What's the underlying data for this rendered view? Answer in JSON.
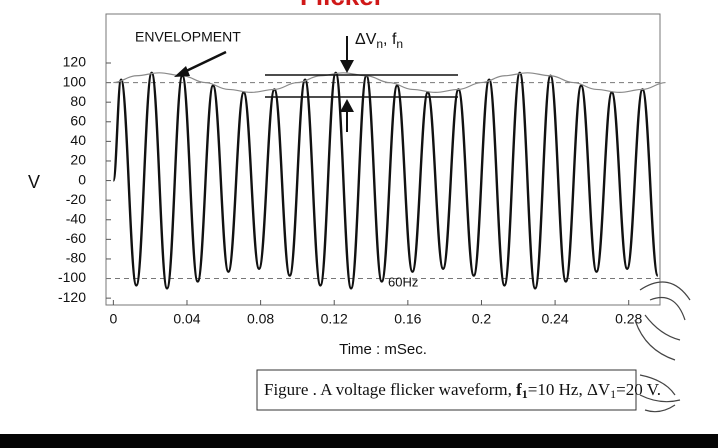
{
  "chart_data": {
    "type": "line",
    "title": "Flicker",
    "xlabel": "Time : mSec.",
    "ylabel": "V",
    "annotations": {
      "envelope": "ENVELOPMENT",
      "delta": [
        "ΔV",
        "n",
        ", f",
        "n"
      ],
      "carrier": "60Hz"
    },
    "caption": [
      "Figure . A voltage flicker waveform, ",
      "f",
      "1",
      "=10 Hz, ",
      "ΔV",
      "1",
      "=20 V."
    ],
    "xlim": [
      -0.004,
      0.297
    ],
    "ylim": [
      -127,
      170
    ],
    "xticks": [
      0,
      0.04,
      0.08,
      0.12,
      0.16,
      0.2,
      0.24,
      0.28
    ],
    "yticks": [
      120,
      100,
      80,
      60,
      40,
      20,
      0,
      -20,
      -40,
      -60,
      -80,
      -100,
      -120
    ],
    "reference_lines": [
      100,
      -100
    ],
    "series": [
      {
        "name": "Voltage",
        "color": "#111111",
        "x": [
          0,
          0.00417,
          0.0125,
          0.02083,
          0.02917,
          0.0375,
          0.04583,
          0.05417,
          0.0625,
          0.07083,
          0.07917,
          0.0875,
          0.09583,
          0.10417,
          0.1125,
          0.12083,
          0.12917,
          0.1375,
          0.14583,
          0.15417,
          0.1625,
          0.17083,
          0.17917,
          0.1875,
          0.19583,
          0.20417,
          0.2125,
          0.22083,
          0.22917,
          0.2375,
          0.24583,
          0.25417,
          0.2625,
          0.27083,
          0.27917,
          0.2875,
          0.29583
        ],
        "values": [
          0,
          103,
          -107,
          110,
          -110,
          107,
          -103,
          97,
          -93,
          90,
          -90,
          93,
          -97,
          103,
          -107,
          110,
          -110,
          107,
          -103,
          97,
          -93,
          90,
          -90,
          93,
          -97,
          103,
          -107,
          110,
          -110,
          107,
          -103,
          97,
          -93,
          90,
          -90,
          93,
          -97
        ]
      },
      {
        "name": "Envelope",
        "color": "#8a8a8a",
        "x": [
          0,
          0.0125,
          0.025,
          0.0375,
          0.05,
          0.0625,
          0.075,
          0.0875,
          0.1,
          0.1125,
          0.125,
          0.1375,
          0.15,
          0.1625,
          0.175,
          0.1875,
          0.2,
          0.2125,
          0.225,
          0.2375,
          0.25,
          0.2625,
          0.275,
          0.2875,
          0.3
        ],
        "values": [
          100,
          107,
          110,
          107,
          100,
          93,
          90,
          93,
          100,
          107,
          110,
          107,
          100,
          93,
          90,
          93,
          100,
          107,
          110,
          107,
          100,
          93,
          90,
          93,
          100
        ]
      }
    ]
  }
}
